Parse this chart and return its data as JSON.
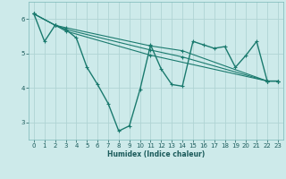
{
  "xlabel": "Humidex (Indice chaleur)",
  "bg_color": "#cdeaea",
  "grid_color": "#b0d4d4",
  "line_color": "#1a7a6e",
  "xlim": [
    -0.5,
    23.5
  ],
  "ylim": [
    2.5,
    6.5
  ],
  "yticks": [
    3,
    4,
    5,
    6
  ],
  "xticks": [
    0,
    1,
    2,
    3,
    4,
    5,
    6,
    7,
    8,
    9,
    10,
    11,
    12,
    13,
    14,
    15,
    16,
    17,
    18,
    19,
    20,
    21,
    22,
    23
  ],
  "series1": [
    [
      0,
      6.15
    ],
    [
      1,
      5.35
    ],
    [
      2,
      5.82
    ],
    [
      3,
      5.7
    ],
    [
      4,
      5.45
    ],
    [
      5,
      4.6
    ],
    [
      6,
      4.1
    ],
    [
      7,
      3.55
    ],
    [
      8,
      2.75
    ],
    [
      9,
      2.9
    ],
    [
      10,
      3.95
    ],
    [
      11,
      5.25
    ],
    [
      12,
      4.55
    ],
    [
      13,
      4.1
    ],
    [
      14,
      4.05
    ],
    [
      15,
      5.35
    ],
    [
      16,
      5.25
    ],
    [
      17,
      5.15
    ],
    [
      18,
      5.2
    ],
    [
      19,
      4.6
    ],
    [
      20,
      4.95
    ],
    [
      21,
      5.35
    ],
    [
      22,
      4.2
    ],
    [
      23,
      4.2
    ]
  ],
  "series2": [
    [
      0,
      6.15
    ],
    [
      2,
      5.82
    ],
    [
      3,
      5.75
    ],
    [
      11,
      5.22
    ],
    [
      14,
      5.08
    ],
    [
      22,
      4.2
    ],
    [
      23,
      4.2
    ]
  ],
  "series3": [
    [
      0,
      6.15
    ],
    [
      2,
      5.82
    ],
    [
      3,
      5.7
    ],
    [
      11,
      5.1
    ],
    [
      14,
      4.9
    ],
    [
      22,
      4.2
    ],
    [
      23,
      4.2
    ]
  ],
  "series4": [
    [
      0,
      6.15
    ],
    [
      2,
      5.82
    ],
    [
      3,
      5.65
    ],
    [
      11,
      4.95
    ],
    [
      22,
      4.2
    ],
    [
      23,
      4.2
    ]
  ]
}
